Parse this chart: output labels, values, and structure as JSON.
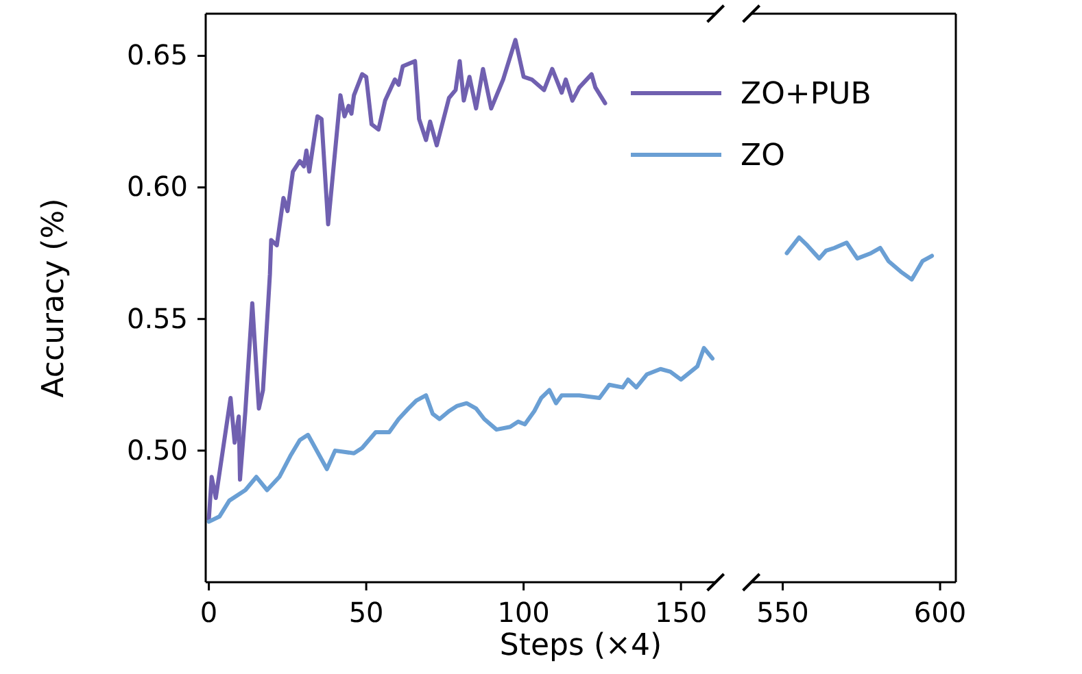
{
  "chart_data": [
    {
      "type": "line",
      "xlabel": "Steps (×4)",
      "ylabel": "Accuracy (%)",
      "xlim": [
        -1,
        161
      ],
      "xticks": [
        0,
        50,
        100,
        150
      ],
      "ylim": [
        0.45,
        0.666
      ],
      "yticks": [
        {
          "value": 0.5,
          "label": "0.50"
        },
        0.55,
        {
          "value": 0.6,
          "label": "0.60"
        },
        0.65
      ],
      "legend": "top right",
      "grid": false,
      "series": [
        {
          "name": "ZO+PUB",
          "color": "#7060b0",
          "x": [
            0,
            0.9,
            2.2,
            6.9,
            8.2,
            9.5,
            9.9,
            11.6,
            13.8,
            15.9,
            17.2,
            19.4,
            19.8,
            21.6,
            23.7,
            25.0,
            26.7,
            28.9,
            30.2,
            31.0,
            31.9,
            34.5,
            35.8,
            37.9,
            41.8,
            43.1,
            44.4,
            45.3,
            46.1,
            48.7,
            50.0,
            51.7,
            53.9,
            56.0,
            59.1,
            60.3,
            61.6,
            65.5,
            66.8,
            69.0,
            70.3,
            72.4,
            76.3,
            78.4,
            79.7,
            81.0,
            82.8,
            84.9,
            87.1,
            89.7,
            93.5,
            97.4,
            100.0,
            102.6,
            106.5,
            109.1,
            112.1,
            113.4,
            115.5,
            117.7,
            121.6,
            122.8,
            125.9
          ],
          "values": [
            0.474,
            0.49,
            0.482,
            0.52,
            0.503,
            0.513,
            0.489,
            0.515,
            0.556,
            0.516,
            0.523,
            0.567,
            0.58,
            0.578,
            0.596,
            0.591,
            0.606,
            0.61,
            0.608,
            0.614,
            0.606,
            0.627,
            0.626,
            0.586,
            0.635,
            0.627,
            0.631,
            0.628,
            0.635,
            0.643,
            0.642,
            0.624,
            0.622,
            0.633,
            0.641,
            0.639,
            0.646,
            0.648,
            0.626,
            0.618,
            0.625,
            0.616,
            0.634,
            0.637,
            0.648,
            0.633,
            0.642,
            0.63,
            0.645,
            0.63,
            0.641,
            0.656,
            0.642,
            0.641,
            0.637,
            0.645,
            0.636,
            0.641,
            0.633,
            0.638,
            0.643,
            0.638,
            0.632
          ]
        },
        {
          "name": "ZO",
          "color": "#6a9fd4",
          "x": [
            0,
            3.4,
            6.5,
            11.6,
            15.1,
            18.5,
            22.4,
            25.9,
            28.9,
            31.5,
            37.5,
            40.1,
            46.1,
            48.7,
            53.0,
            57.3,
            60.3,
            63.4,
            65.9,
            69.0,
            71.1,
            73.3,
            76.3,
            78.9,
            81.9,
            84.9,
            87.5,
            91.4,
            95.7,
            98.3,
            100.4,
            103.4,
            105.6,
            108.2,
            110.3,
            112.1,
            117.7,
            124.1,
            127.2,
            131.5,
            133.2,
            135.8,
            139.2,
            143.5,
            146.6,
            150.0,
            155.2,
            157.3,
            160.0
          ],
          "values": [
            0.473,
            0.475,
            0.481,
            0.485,
            0.49,
            0.485,
            0.49,
            0.498,
            0.504,
            0.506,
            0.493,
            0.5,
            0.499,
            0.501,
            0.507,
            0.507,
            0.512,
            0.516,
            0.519,
            0.521,
            0.514,
            0.512,
            0.515,
            0.517,
            0.518,
            0.516,
            0.512,
            0.508,
            0.509,
            0.511,
            0.51,
            0.515,
            0.52,
            0.523,
            0.518,
            0.521,
            0.521,
            0.52,
            0.525,
            0.524,
            0.527,
            0.524,
            0.529,
            0.531,
            0.53,
            0.527,
            0.532,
            0.539,
            0.535
          ]
        }
      ]
    },
    {
      "type": "line",
      "xlim": [
        540,
        605
      ],
      "xticks": [
        550,
        600
      ],
      "ylim": [
        0.45,
        0.666
      ],
      "tick_labels": "x",
      "grid": false,
      "series": [
        {
          "color": "#6a9fd4",
          "x": [
            551.3,
            555.2,
            557.8,
            561.6,
            563.8,
            566.4,
            570.3,
            573.7,
            578.0,
            581.0,
            583.6,
            587.5,
            591.0,
            594.4,
            597.4
          ],
          "values": [
            0.575,
            0.581,
            0.578,
            0.573,
            0.576,
            0.577,
            0.579,
            0.573,
            0.575,
            0.577,
            0.572,
            0.568,
            0.565,
            0.572,
            0.574
          ]
        }
      ]
    }
  ]
}
